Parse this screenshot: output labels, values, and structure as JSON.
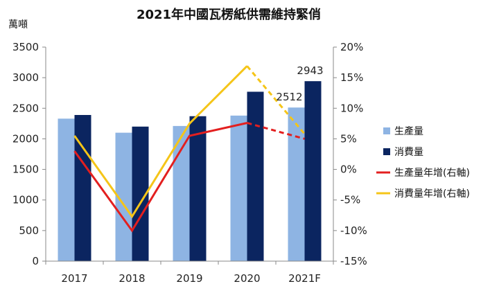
{
  "chart_data": {
    "type": "bar",
    "title": "2021年中國瓦楞紙供需維持緊俏",
    "ylabel": "萬噸",
    "categories": [
      "2017",
      "2018",
      "2019",
      "2020",
      "2021F"
    ],
    "ylim": [
      0,
      3500
    ],
    "yticks": [
      "0",
      "500",
      "1000",
      "1500",
      "2000",
      "2500",
      "3000",
      "3500"
    ],
    "y2lim": [
      -15,
      20
    ],
    "y2ticks": [
      "-15%",
      "-10%",
      "-5%",
      "0%",
      "5%",
      "10%",
      "15%",
      "20%"
    ],
    "series": [
      {
        "name": "生產量",
        "kind": "bar",
        "axis": "left",
        "color": "#8eb4e3",
        "values": [
          2330,
          2100,
          2210,
          2380,
          2512
        ]
      },
      {
        "name": "消費量",
        "kind": "bar",
        "axis": "left",
        "color": "#0b2560",
        "values": [
          2390,
          2200,
          2370,
          2770,
          2943
        ]
      },
      {
        "name": "生產量年增(右軸)",
        "kind": "line",
        "axis": "right",
        "color": "#e31f1f",
        "values": [
          3,
          -10,
          5.5,
          7.6,
          5
        ],
        "forecast_from_index": 3
      },
      {
        "name": "消費量年增(右軸)",
        "kind": "line",
        "axis": "right",
        "color": "#f5c518",
        "values": [
          5.5,
          -7.7,
          7.5,
          16.9,
          5.8
        ],
        "forecast_from_index": 3
      }
    ],
    "data_labels": [
      {
        "series": "生產量",
        "category": "2021F",
        "text": "2512"
      },
      {
        "series": "消費量",
        "category": "2021F",
        "text": "2943"
      }
    ],
    "grid": false,
    "legend_position": "right"
  }
}
